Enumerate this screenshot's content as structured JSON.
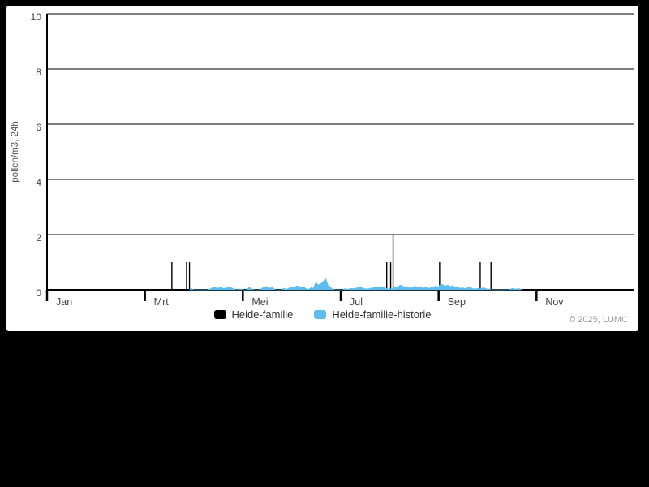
{
  "footer": {
    "copyright": "© 2025, LUMC"
  },
  "legend": {
    "items": [
      {
        "label": "Heide-familie",
        "color": "#000000"
      },
      {
        "label": "Heide-familie-historie",
        "color": "#5cbdf2"
      }
    ]
  },
  "chart_data": {
    "type": "mixed",
    "title": "",
    "xlabel": "",
    "ylabel": "pollen/m3, 24h",
    "ylim": [
      0,
      10
    ],
    "yticks": [
      0,
      2,
      4,
      6,
      8,
      10
    ],
    "grid": "horizontal",
    "legend_position": "bottom-center",
    "x_axis": {
      "unit": "month-index (0 = start of Jan, 12 = end of Dec)",
      "range_months": 12,
      "tick_months": [
        0,
        2,
        4,
        6,
        8,
        10
      ],
      "tick_labels": [
        "Jan",
        "Mrt",
        "Mei",
        "Jul",
        "Sep",
        "Nov"
      ]
    },
    "axis_colors": {
      "line": "#000000",
      "tick_label": "#444444",
      "axis_title": "#555555"
    },
    "series": [
      {
        "name": "Heide-familie",
        "type": "bar",
        "color": "#000000",
        "points": [
          [
            2.55,
            1
          ],
          [
            2.85,
            1
          ],
          [
            2.91,
            1
          ],
          [
            6.94,
            1
          ],
          [
            7.02,
            1
          ],
          [
            7.07,
            2
          ],
          [
            8.02,
            1
          ],
          [
            8.85,
            1
          ],
          [
            9.07,
            1
          ]
        ]
      },
      {
        "name": "Heide-familie-historie",
        "type": "area",
        "color": "#5cbdf2",
        "points": [
          [
            2.91,
            0
          ],
          [
            2.95,
            0.06
          ],
          [
            3.0,
            0
          ],
          [
            3.28,
            0
          ],
          [
            3.35,
            0.05
          ],
          [
            3.41,
            0.1
          ],
          [
            3.48,
            0.06
          ],
          [
            3.55,
            0.09
          ],
          [
            3.61,
            0.05
          ],
          [
            3.68,
            0.08
          ],
          [
            3.74,
            0.1
          ],
          [
            3.81,
            0.04
          ],
          [
            3.88,
            0
          ],
          [
            3.94,
            0.04
          ],
          [
            4.01,
            0
          ],
          [
            4.08,
            0
          ],
          [
            4.13,
            0.1
          ],
          [
            4.18,
            0.04
          ],
          [
            4.24,
            0
          ],
          [
            4.34,
            0
          ],
          [
            4.41,
            0.08
          ],
          [
            4.48,
            0.13
          ],
          [
            4.54,
            0.06
          ],
          [
            4.61,
            0.09
          ],
          [
            4.66,
            0
          ],
          [
            4.78,
            0
          ],
          [
            4.83,
            0.06
          ],
          [
            4.88,
            0.03
          ],
          [
            4.93,
            0.04
          ],
          [
            4.98,
            0.12
          ],
          [
            5.04,
            0.08
          ],
          [
            5.11,
            0.15
          ],
          [
            5.18,
            0.1
          ],
          [
            5.24,
            0.12
          ],
          [
            5.29,
            0.05
          ],
          [
            5.34,
            0.02
          ],
          [
            5.39,
            0.08
          ],
          [
            5.44,
            0.06
          ],
          [
            5.49,
            0.28
          ],
          [
            5.54,
            0.18
          ],
          [
            5.59,
            0.22
          ],
          [
            5.64,
            0.3
          ],
          [
            5.69,
            0.42
          ],
          [
            5.74,
            0.18
          ],
          [
            5.79,
            0.1
          ],
          [
            5.84,
            0.02
          ],
          [
            5.91,
            0
          ],
          [
            6.04,
            0
          ],
          [
            6.09,
            0.05
          ],
          [
            6.14,
            0.02
          ],
          [
            6.21,
            0.06
          ],
          [
            6.27,
            0.04
          ],
          [
            6.34,
            0.08
          ],
          [
            6.41,
            0.1
          ],
          [
            6.47,
            0.05
          ],
          [
            6.54,
            0.03
          ],
          [
            6.61,
            0.06
          ],
          [
            6.67,
            0.08
          ],
          [
            6.74,
            0.1
          ],
          [
            6.81,
            0.12
          ],
          [
            6.87,
            0.1
          ],
          [
            6.92,
            0.06
          ],
          [
            6.97,
            0.04
          ],
          [
            7.04,
            0.03
          ],
          [
            7.11,
            0.12
          ],
          [
            7.16,
            0.08
          ],
          [
            7.21,
            0.18
          ],
          [
            7.26,
            0.14
          ],
          [
            7.31,
            0.1
          ],
          [
            7.36,
            0.12
          ],
          [
            7.41,
            0.06
          ],
          [
            7.47,
            0.1
          ],
          [
            7.52,
            0.14
          ],
          [
            7.57,
            0.08
          ],
          [
            7.64,
            0.12
          ],
          [
            7.69,
            0.06
          ],
          [
            7.74,
            0.1
          ],
          [
            7.79,
            0.05
          ],
          [
            7.84,
            0.08
          ],
          [
            7.89,
            0.1
          ],
          [
            7.94,
            0.14
          ],
          [
            7.99,
            0.1
          ],
          [
            8.04,
            0.22
          ],
          [
            8.09,
            0.18
          ],
          [
            8.14,
            0.14
          ],
          [
            8.19,
            0.18
          ],
          [
            8.24,
            0.12
          ],
          [
            8.29,
            0.16
          ],
          [
            8.34,
            0.08
          ],
          [
            8.39,
            0.1
          ],
          [
            8.44,
            0.06
          ],
          [
            8.49,
            0.08
          ],
          [
            8.54,
            0.04
          ],
          [
            8.59,
            0.08
          ],
          [
            8.64,
            0.1
          ],
          [
            8.69,
            0.05
          ],
          [
            8.74,
            0.03
          ],
          [
            8.8,
            0.06
          ],
          [
            8.85,
            0.04
          ],
          [
            8.92,
            0.08
          ],
          [
            8.97,
            0.04
          ],
          [
            9.04,
            0.02
          ],
          [
            9.1,
            0
          ],
          [
            9.44,
            0
          ],
          [
            9.5,
            0.06
          ],
          [
            9.57,
            0.03
          ],
          [
            9.64,
            0.05
          ],
          [
            9.7,
            0
          ]
        ]
      }
    ]
  }
}
